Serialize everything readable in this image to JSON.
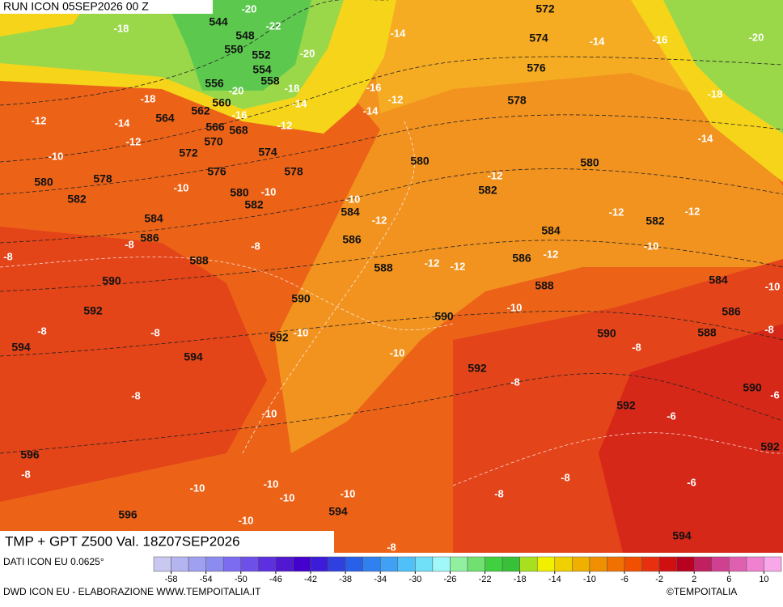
{
  "header": {
    "run": "RUN ICON 05SEP2026 00 Z"
  },
  "map": {
    "product": "TMP + GPT Z500 Val. 18Z07SEP2026",
    "geopotential_labels": [
      544,
      548,
      550,
      552,
      554,
      558,
      556,
      560,
      562,
      564,
      566,
      568,
      570,
      572,
      574,
      576,
      578,
      578,
      580,
      582,
      584,
      586,
      588,
      590,
      592,
      594,
      594,
      592,
      590,
      580,
      582,
      584,
      586,
      588,
      590,
      592,
      594,
      596,
      596,
      594,
      592,
      592,
      590,
      590,
      588,
      586,
      584,
      588,
      586,
      584,
      582,
      582,
      580,
      580,
      578,
      576,
      574,
      572
    ],
    "temperature_labels": [
      -20,
      -18,
      -22,
      -20,
      -20,
      -18,
      -18,
      -16,
      -14,
      -14,
      -12,
      -12,
      -12,
      -14,
      -12,
      -16,
      -14,
      -14,
      -16,
      -20,
      -18,
      -14,
      -10,
      -10,
      -10,
      -10,
      -12,
      -8,
      -8,
      -8,
      -8,
      -8,
      -10,
      -10,
      -12,
      -12,
      -12,
      -12,
      -12,
      -12,
      -10,
      -10,
      -10,
      -8,
      -8,
      -8,
      -8,
      -10,
      -6,
      -6,
      -6,
      -8,
      -8,
      -8,
      -10,
      -10,
      -10,
      -10,
      -10,
      -8
    ]
  },
  "colorbar": {
    "min": -60,
    "max": 12,
    "ticks": [
      -58,
      -54,
      -50,
      -46,
      -42,
      -38,
      -34,
      -30,
      -26,
      -22,
      -18,
      -14,
      -10,
      -6,
      -2,
      2,
      6,
      10
    ],
    "colors": [
      "#c8c8f0",
      "#b4b4f0",
      "#a0a0f0",
      "#8c8cf0",
      "#7c6cf0",
      "#6c50e8",
      "#5c30e0",
      "#5018d0",
      "#4400cc",
      "#3c1cd8",
      "#3040e0",
      "#2860e8",
      "#3080f0",
      "#40a0f4",
      "#50c0f8",
      "#70e0f8",
      "#a0f8f8",
      "#90f0a0",
      "#70e070",
      "#40d040",
      "#38c038",
      "#a8e020",
      "#f0f000",
      "#f0d000",
      "#f0b000",
      "#f09000",
      "#f07000",
      "#f05000",
      "#e83010",
      "#d01010",
      "#b80020",
      "#c02060",
      "#d04090",
      "#e060b0",
      "#f080d0",
      "#f8a8e8"
    ]
  },
  "footer": {
    "data_source": "DATI ICON EU 0.0625°",
    "credits": "DWD ICON EU - ELABORAZIONE WWW.TEMPOITALIA.IT",
    "copyright": "©TEMPOITALIA"
  }
}
